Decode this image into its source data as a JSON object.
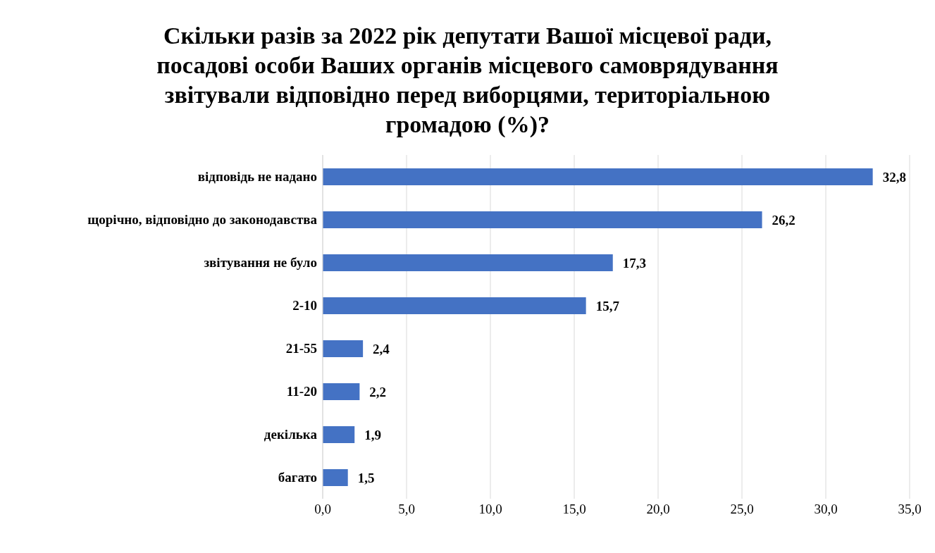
{
  "chart_data": {
    "type": "bar",
    "orientation": "horizontal",
    "title": "Скільки разів за 2022 рік депутати Вашої місцевої ради, посадові особи Ваших органів місцевого самоврядування звітували відповідно перед виборцями, територіальною громадою (%)?",
    "categories": [
      "відповідь не надано",
      "щорічно, відповідно до законодавства",
      "звітування не було",
      "2-10",
      "21-55",
      "11-20",
      "декілька",
      "багато"
    ],
    "values": [
      32.8,
      26.2,
      17.3,
      15.7,
      2.4,
      2.2,
      1.9,
      1.5
    ],
    "value_labels": [
      "32,8",
      "26,2",
      "17,3",
      "15,7",
      "2,4",
      "2,2",
      "1,9",
      "1,5"
    ],
    "color": "#4472c4",
    "xlim": [
      0,
      35
    ],
    "xticks": [
      {
        "value": 0,
        "label": "0,0"
      },
      {
        "value": 5,
        "label": "5,0"
      },
      {
        "value": 10,
        "label": "10,0"
      },
      {
        "value": 15,
        "label": "15,0"
      },
      {
        "value": 20,
        "label": "20,0"
      },
      {
        "value": 25,
        "label": "25,0"
      },
      {
        "value": 30,
        "label": "30,0"
      },
      {
        "value": 35,
        "label": "35,0"
      }
    ],
    "grid": "x",
    "legend": false
  }
}
